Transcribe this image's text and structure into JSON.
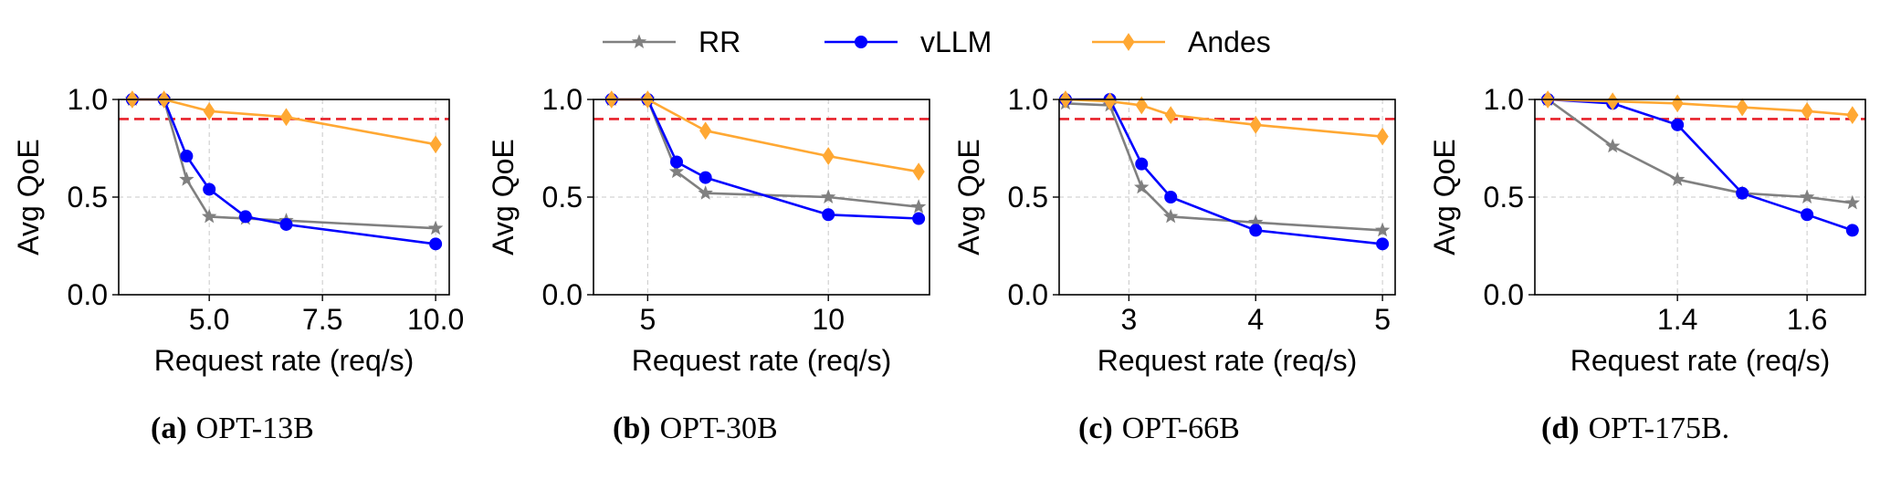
{
  "legend": {
    "placement": "top-center",
    "items": [
      {
        "label": "RR",
        "color": "#808080",
        "marker": "star"
      },
      {
        "label": "vLLM",
        "color": "#0000ff",
        "marker": "circle"
      },
      {
        "label": "Andes",
        "color": "#ffa833",
        "marker": "diamond"
      }
    ]
  },
  "threshold": {
    "value": 0.9,
    "color": "#e8202a",
    "style": "dashed"
  },
  "chart_data": [
    {
      "type": "line",
      "caption_letter": "(a)",
      "caption_text": "OPT-13B",
      "xlabel": "Request rate (req/s)",
      "ylabel": "Avg QoE",
      "xlim": [
        3.0,
        10.3
      ],
      "ylim": [
        0.0,
        1.0
      ],
      "xticks": [
        5.0,
        7.5,
        10.0
      ],
      "xtick_labels": [
        "5.0",
        "7.5",
        "10.0"
      ],
      "yticks": [
        0.0,
        0.5,
        1.0
      ],
      "ytick_labels": [
        "0.0",
        "0.5",
        "1.0"
      ],
      "grid": true,
      "series": [
        {
          "name": "RR",
          "x": [
            3.3,
            4.0,
            4.5,
            5.0,
            5.8,
            6.7,
            10.0
          ],
          "y": [
            1.0,
            1.0,
            0.59,
            0.4,
            0.39,
            0.38,
            0.34
          ]
        },
        {
          "name": "vLLM",
          "x": [
            3.3,
            4.0,
            4.5,
            5.0,
            5.8,
            6.7,
            10.0
          ],
          "y": [
            1.0,
            1.0,
            0.71,
            0.54,
            0.4,
            0.36,
            0.26
          ]
        },
        {
          "name": "Andes",
          "x": [
            3.3,
            4.0,
            5.0,
            6.7,
            10.0
          ],
          "y": [
            1.0,
            1.0,
            0.94,
            0.91,
            0.77
          ]
        }
      ]
    },
    {
      "type": "line",
      "caption_letter": "(b)",
      "caption_text": "OPT-30B",
      "xlabel": "Request rate (req/s)",
      "ylabel": "Avg QoE",
      "xlim": [
        3.5,
        12.8
      ],
      "ylim": [
        0.0,
        1.0
      ],
      "xticks": [
        5,
        10
      ],
      "xtick_labels": [
        "5",
        "10"
      ],
      "yticks": [
        0.0,
        0.5,
        1.0
      ],
      "ytick_labels": [
        "0.0",
        "0.5",
        "1.0"
      ],
      "grid": true,
      "series": [
        {
          "name": "RR",
          "x": [
            4.0,
            5.0,
            5.8,
            6.6,
            10.0,
            12.5
          ],
          "y": [
            1.0,
            1.0,
            0.63,
            0.52,
            0.5,
            0.45
          ]
        },
        {
          "name": "vLLM",
          "x": [
            4.0,
            5.0,
            5.8,
            6.6,
            10.0,
            12.5
          ],
          "y": [
            1.0,
            1.0,
            0.68,
            0.6,
            0.41,
            0.39
          ]
        },
        {
          "name": "Andes",
          "x": [
            4.0,
            5.0,
            6.6,
            10.0,
            12.5
          ],
          "y": [
            1.0,
            1.0,
            0.84,
            0.71,
            0.63
          ]
        }
      ]
    },
    {
      "type": "line",
      "caption_letter": "(c)",
      "caption_text": "OPT-66B",
      "xlabel": "Request rate (req/s)",
      "ylabel": "Avg QoE",
      "xlim": [
        2.45,
        5.1
      ],
      "ylim": [
        0.0,
        1.0
      ],
      "xticks": [
        3,
        4,
        5
      ],
      "xtick_labels": [
        "3",
        "4",
        "5"
      ],
      "yticks": [
        0.0,
        0.5,
        1.0
      ],
      "ytick_labels": [
        "0.0",
        "0.5",
        "1.0"
      ],
      "grid": true,
      "series": [
        {
          "name": "RR",
          "x": [
            2.5,
            2.85,
            3.1,
            3.33,
            4.0,
            5.0
          ],
          "y": [
            0.98,
            0.97,
            0.55,
            0.4,
            0.37,
            0.33
          ]
        },
        {
          "name": "vLLM",
          "x": [
            2.5,
            2.85,
            3.1,
            3.33,
            4.0,
            5.0
          ],
          "y": [
            1.0,
            1.0,
            0.67,
            0.5,
            0.33,
            0.26
          ]
        },
        {
          "name": "Andes",
          "x": [
            2.5,
            2.85,
            3.1,
            3.33,
            4.0,
            5.0
          ],
          "y": [
            1.0,
            0.99,
            0.97,
            0.92,
            0.87,
            0.81
          ]
        }
      ]
    },
    {
      "type": "line",
      "caption_letter": "(d)",
      "caption_text": "OPT-175B.",
      "xlabel": "Request rate (req/s)",
      "ylabel": "Avg QoE",
      "xlim": [
        1.18,
        1.69
      ],
      "ylim": [
        0.0,
        1.0
      ],
      "xticks": [
        1.4,
        1.6
      ],
      "xtick_labels": [
        "1.4",
        "1.6"
      ],
      "yticks": [
        0.0,
        0.5,
        1.0
      ],
      "ytick_labels": [
        "0.0",
        "0.5",
        "1.0"
      ],
      "grid": true,
      "series": [
        {
          "name": "RR",
          "x": [
            1.2,
            1.3,
            1.4,
            1.5,
            1.6,
            1.67
          ],
          "y": [
            1.0,
            0.76,
            0.59,
            0.52,
            0.5,
            0.47
          ]
        },
        {
          "name": "vLLM",
          "x": [
            1.2,
            1.3,
            1.4,
            1.5,
            1.6,
            1.67
          ],
          "y": [
            1.0,
            0.98,
            0.87,
            0.52,
            0.41,
            0.33
          ]
        },
        {
          "name": "Andes",
          "x": [
            1.2,
            1.3,
            1.4,
            1.5,
            1.6,
            1.67
          ],
          "y": [
            1.0,
            0.99,
            0.98,
            0.96,
            0.94,
            0.92
          ]
        }
      ]
    }
  ]
}
